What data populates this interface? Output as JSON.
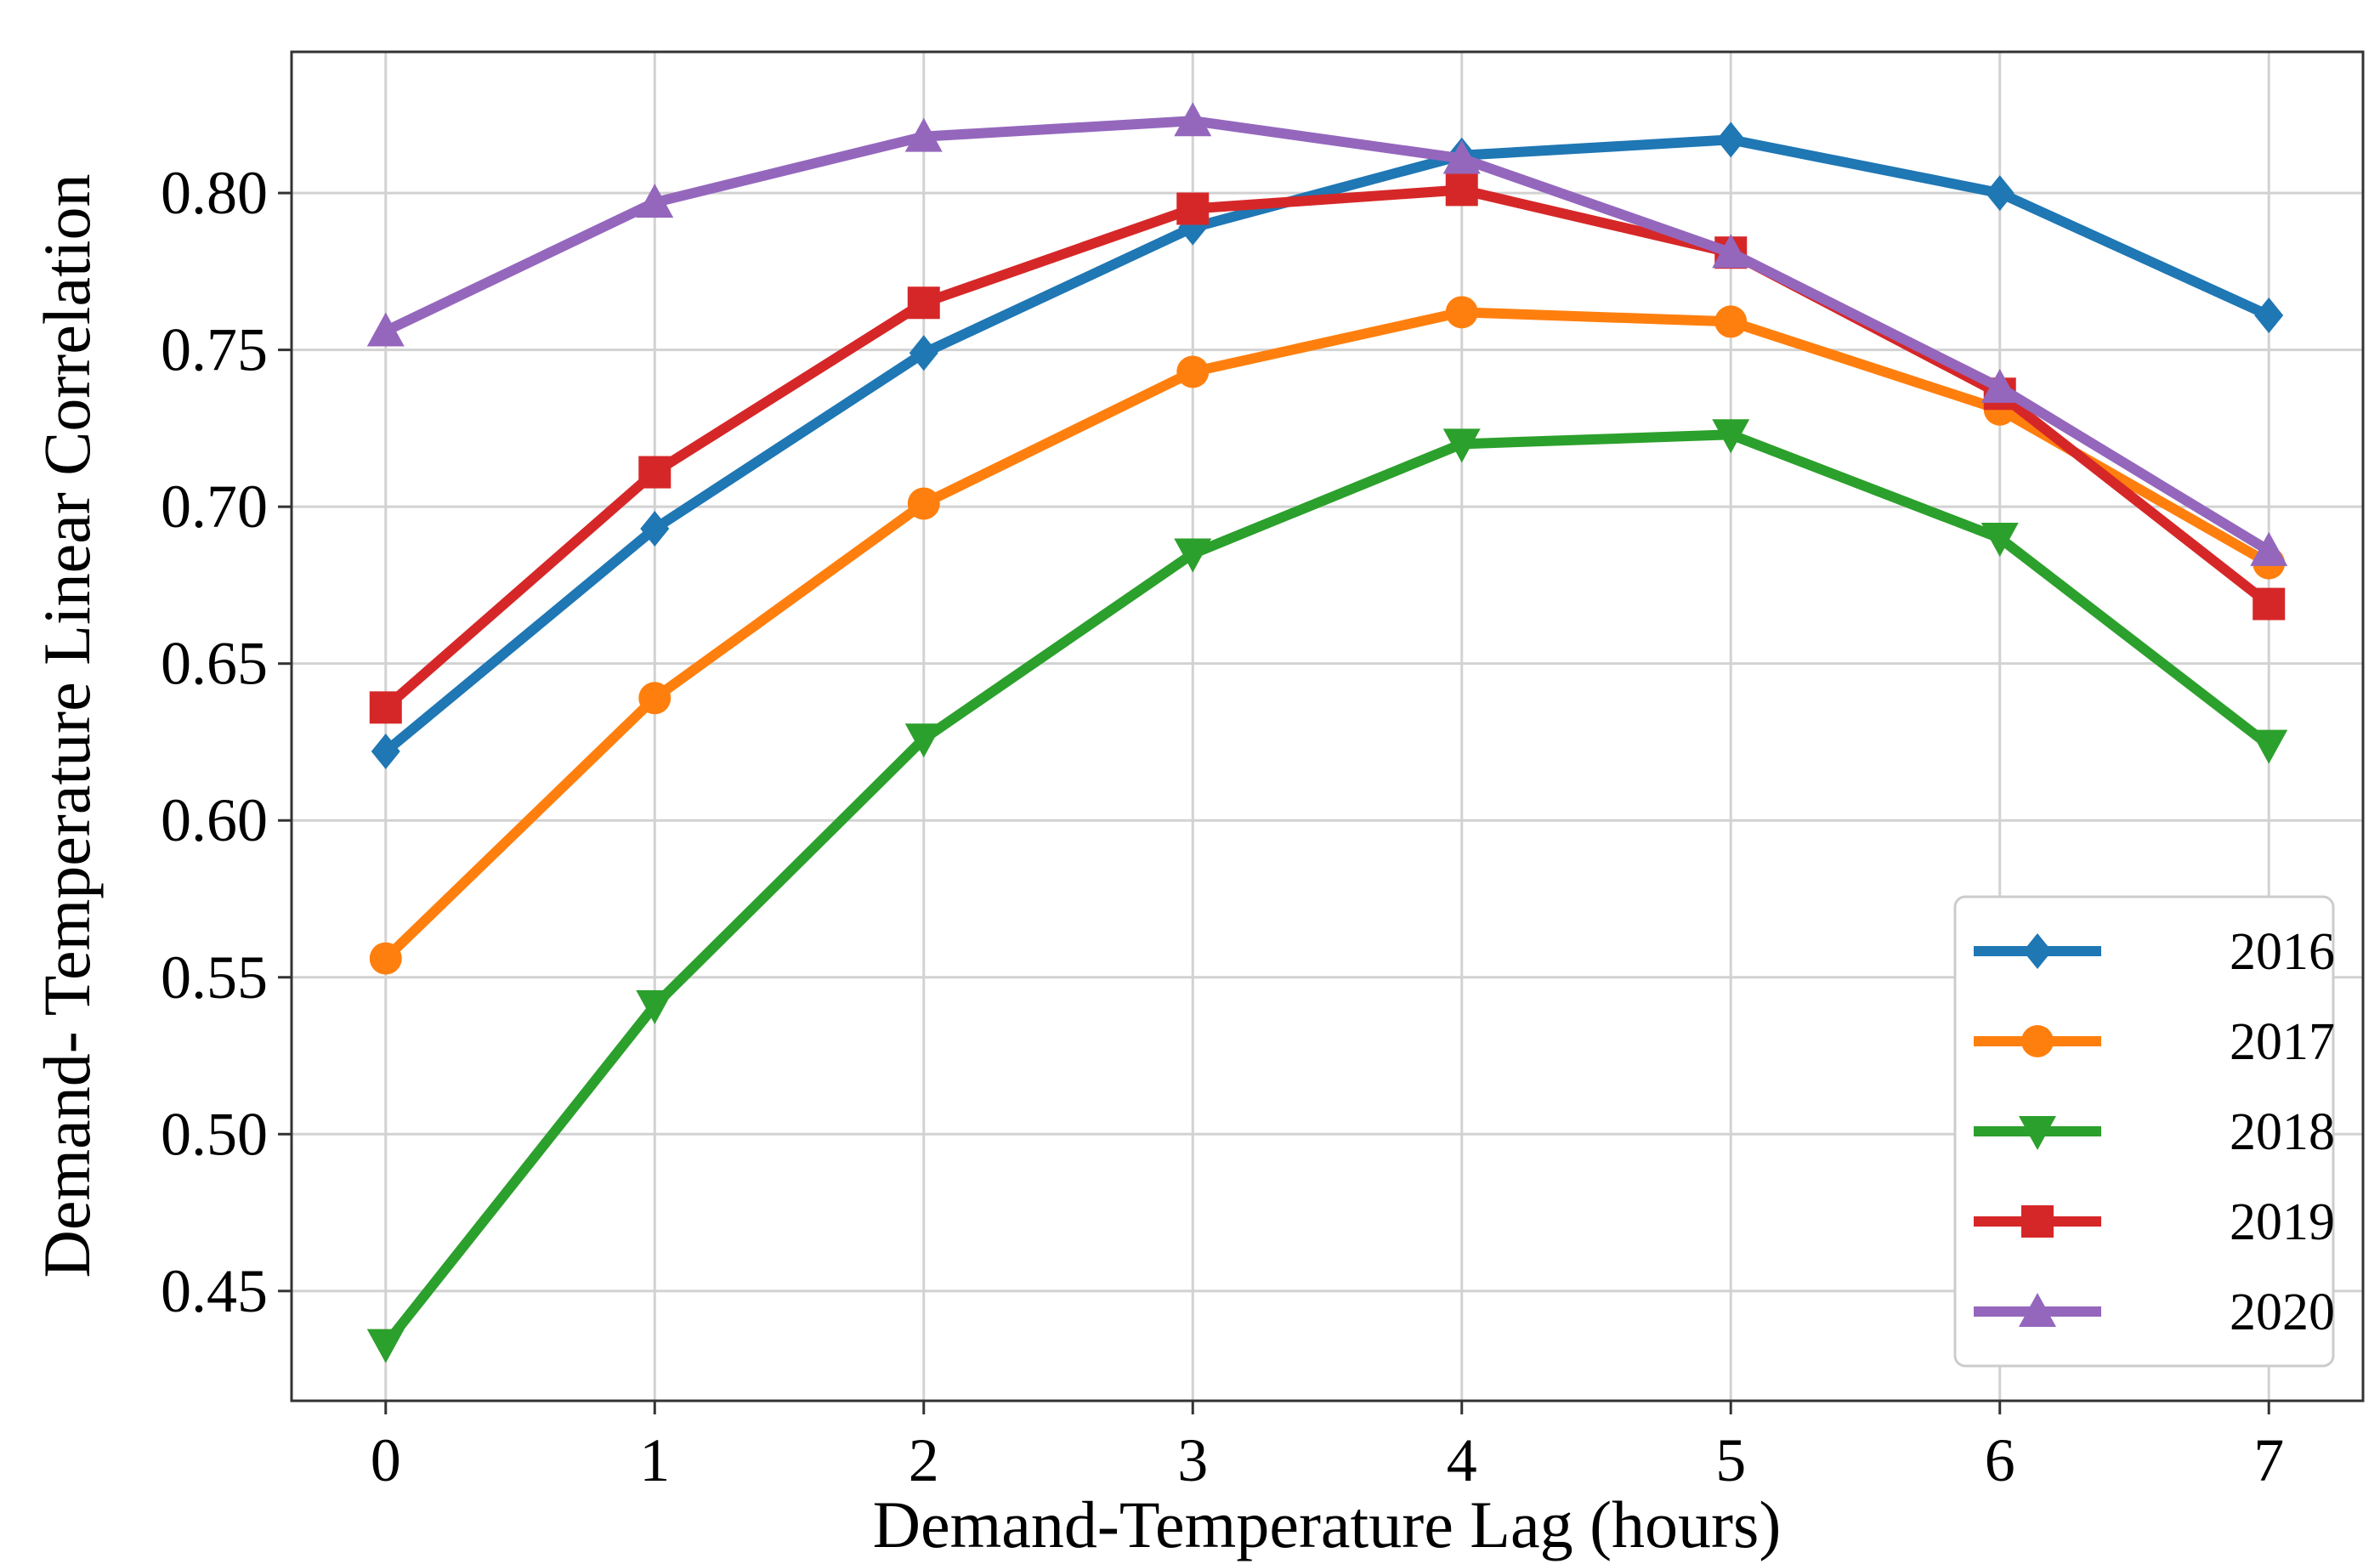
{
  "chart_data": {
    "type": "line",
    "title": "",
    "xlabel": "Demand-Temperature Lag (hours)",
    "ylabel": "Demand- Temperature Linear Correlation",
    "x": [
      0,
      1,
      2,
      3,
      4,
      5,
      6,
      7
    ],
    "xlim": [
      -0.35,
      7.35
    ],
    "ylim": [
      0.415,
      0.845
    ],
    "xticks": [
      "0",
      "1",
      "2",
      "3",
      "4",
      "5",
      "6",
      "7"
    ],
    "yticks": [
      0.45,
      0.5,
      0.55,
      0.6,
      0.65,
      0.7,
      0.75,
      0.8
    ],
    "ytick_labels": [
      "0.45",
      "0.50",
      "0.55",
      "0.60",
      "0.65",
      "0.70",
      "0.75",
      "0.80"
    ],
    "grid": true,
    "legend_position": "lower-right",
    "series": [
      {
        "name": "2016",
        "color": "#1f77b4",
        "marker": "diamond",
        "values": [
          0.622,
          0.693,
          0.749,
          0.789,
          0.812,
          0.817,
          0.8,
          0.761
        ]
      },
      {
        "name": "2017",
        "color": "#ff7f0e",
        "marker": "circle",
        "values": [
          0.556,
          0.639,
          0.701,
          0.743,
          0.762,
          0.759,
          0.731,
          0.682
        ]
      },
      {
        "name": "2018",
        "color": "#2ca02c",
        "marker": "triangle-down",
        "values": [
          0.433,
          0.541,
          0.626,
          0.685,
          0.72,
          0.723,
          0.69,
          0.624
        ]
      },
      {
        "name": "2019",
        "color": "#d62728",
        "marker": "square",
        "values": [
          0.636,
          0.711,
          0.765,
          0.795,
          0.801,
          0.781,
          0.736,
          0.669
        ]
      },
      {
        "name": "2020",
        "color": "#9467bd",
        "marker": "triangle-up",
        "values": [
          0.756,
          0.797,
          0.818,
          0.823,
          0.811,
          0.781,
          0.738,
          0.686
        ]
      }
    ]
  }
}
